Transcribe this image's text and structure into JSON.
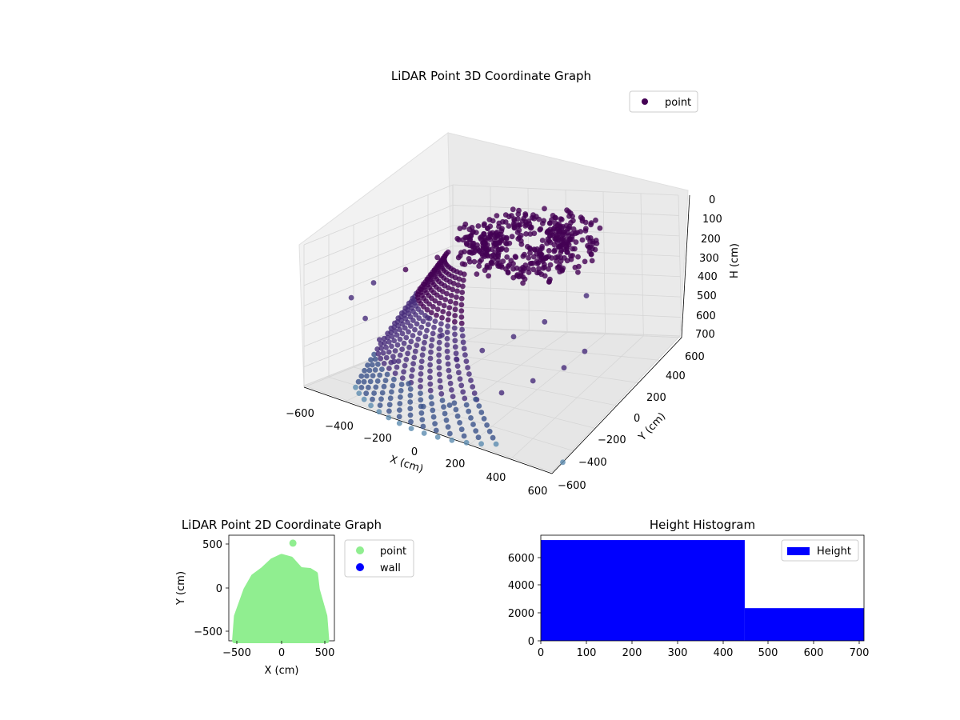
{
  "colors": {
    "point3d_dark": "#440154",
    "point3d_mid": "#3b528b",
    "point3d_light": "#5c8cb0",
    "point2d": "#90ee90",
    "wall": "#0000ff",
    "hist_bar": "#0000ff",
    "pane": "#f2f2f2",
    "grid": "#d6d6d6"
  },
  "chart_data": [
    {
      "type": "scatter",
      "projection": "3d",
      "title": "LiDAR Point 3D Coordinate Graph",
      "xlabel": "X (cm)",
      "ylabel": "Y (cm)",
      "zlabel": "H (cm)",
      "xlim": [
        -600,
        600
      ],
      "ylim": [
        -600,
        600
      ],
      "zlim": [
        0,
        700
      ],
      "z_inverted": true,
      "x_ticks": [
        "−600",
        "−400",
        "−200",
        "0",
        "200",
        "400",
        "600"
      ],
      "y_ticks": [
        "−600",
        "−400",
        "−200",
        "0",
        "200",
        "400",
        "600"
      ],
      "z_ticks": [
        "0",
        "100",
        "200",
        "300",
        "400",
        "500",
        "600",
        "700"
      ],
      "legend": [
        "point"
      ],
      "legend_position": "top-right",
      "grid": true,
      "series": [
        {
          "name": "point",
          "description_points": [
            {
              "x": -100,
              "y": 250,
              "h": 30
            },
            {
              "x": 0,
              "y": 280,
              "h": 25
            },
            {
              "x": 100,
              "y": 300,
              "h": 30
            },
            {
              "x": 200,
              "y": 250,
              "h": 40
            },
            {
              "x": 250,
              "y": 150,
              "h": 50
            },
            {
              "x": 200,
              "y": 50,
              "h": 60
            },
            {
              "x": 100,
              "y": 0,
              "h": 70
            },
            {
              "x": 0,
              "y": 20,
              "h": 60
            },
            {
              "x": -100,
              "y": 100,
              "h": 50
            },
            {
              "x": -150,
              "y": 200,
              "h": 40
            },
            {
              "x": -300,
              "y": 0,
              "h": 150
            },
            {
              "x": -400,
              "y": -100,
              "h": 200
            },
            {
              "x": -500,
              "y": -200,
              "h": 260
            },
            {
              "x": -550,
              "y": -300,
              "h": 320
            },
            {
              "x": -450,
              "y": -350,
              "h": 380
            },
            {
              "x": -350,
              "y": -400,
              "h": 440
            },
            {
              "x": -250,
              "y": -450,
              "h": 500
            },
            {
              "x": -150,
              "y": -500,
              "h": 560
            },
            {
              "x": -50,
              "y": -550,
              "h": 620
            },
            {
              "x": 50,
              "y": -500,
              "h": 600
            },
            {
              "x": 150,
              "y": -450,
              "h": 560
            },
            {
              "x": 250,
              "y": -400,
              "h": 520
            },
            {
              "x": 350,
              "y": -300,
              "h": 480
            },
            {
              "x": 450,
              "y": -200,
              "h": 440
            },
            {
              "x": 500,
              "y": -100,
              "h": 400
            },
            {
              "x": 300,
              "y": -100,
              "h": 300
            },
            {
              "x": 200,
              "y": -200,
              "h": 350
            },
            {
              "x": 100,
              "y": -300,
              "h": 400
            },
            {
              "x": 0,
              "y": -350,
              "h": 450
            },
            {
              "x": -100,
              "y": -300,
              "h": 380
            },
            {
              "x": -200,
              "y": -250,
              "h": 340
            },
            {
              "x": -300,
              "y": -200,
              "h": 300
            },
            {
              "x": 400,
              "y": 100,
              "h": 250
            },
            {
              "x": 300,
              "y": 200,
              "h": 200
            },
            {
              "x": 600,
              "y": -500,
              "h": 700
            }
          ]
        }
      ]
    },
    {
      "type": "scatter",
      "title": "LiDAR Point 2D Coordinate Graph",
      "xlabel": "X (cm)",
      "ylabel": "Y (cm)",
      "xlim": [
        -560,
        560
      ],
      "ylim": [
        -580,
        620
      ],
      "x_ticks": [
        "−500",
        "0",
        "500"
      ],
      "y_ticks": [
        "−500",
        "0",
        "500"
      ],
      "legend": [
        "point",
        "wall"
      ],
      "legend_position": "outside-right",
      "series": [
        {
          "name": "point",
          "outline": [
            [
              -500,
              -580
            ],
            [
              -480,
              -300
            ],
            [
              -430,
              -150
            ],
            [
              -380,
              0
            ],
            [
              -300,
              150
            ],
            [
              -200,
              230
            ],
            [
              -100,
              330
            ],
            [
              0,
              380
            ],
            [
              100,
              350
            ],
            [
              200,
              230
            ],
            [
              300,
              220
            ],
            [
              360,
              180
            ],
            [
              380,
              0
            ],
            [
              420,
              -150
            ],
            [
              460,
              -300
            ],
            [
              480,
              -580
            ]
          ],
          "isolated": [
            [
              120,
              530
            ]
          ]
        },
        {
          "name": "wall",
          "values": []
        }
      ]
    },
    {
      "type": "bar",
      "subtype": "histogram",
      "title": "Height Histogram",
      "xlim": [
        0,
        710
      ],
      "ylim": [
        0,
        7600
      ],
      "x_ticks": [
        "0",
        "100",
        "200",
        "300",
        "400",
        "500",
        "600",
        "700"
      ],
      "y_ticks": [
        "0",
        "2000",
        "4000",
        "6000"
      ],
      "legend": [
        "Height"
      ],
      "legend_position": "top-right",
      "series": [
        {
          "name": "Height",
          "bins": [
            {
              "from": 0,
              "to": 448,
              "count": 7250
            },
            {
              "from": 448,
              "to": 710,
              "count": 2350
            }
          ]
        }
      ]
    }
  ]
}
